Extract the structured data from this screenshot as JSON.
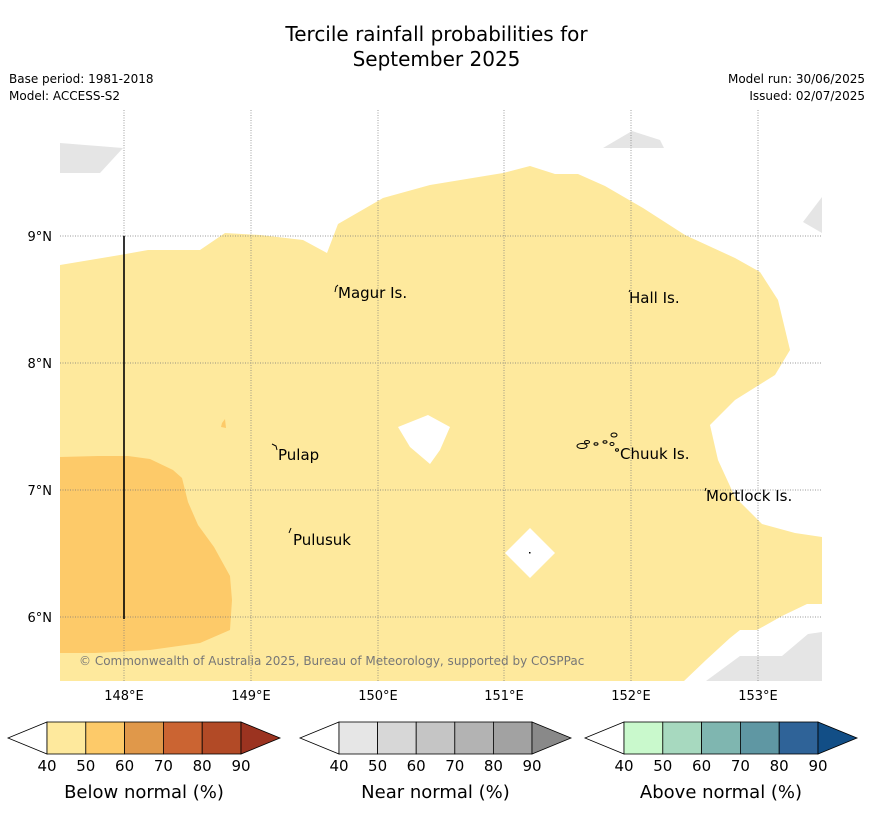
{
  "title_line1": "Tercile rainfall probabilities for",
  "title_line2": "September 2025",
  "meta": {
    "base_period": "Base period: 1981-2018",
    "model": "Model: ACCESS-S2",
    "model_run": "Model run: 30/06/2025",
    "issued": "Issued: 02/07/2025"
  },
  "map": {
    "lon_labels": [
      "148°E",
      "149°E",
      "150°E",
      "151°E",
      "152°E",
      "153°E"
    ],
    "lat_labels": [
      "9°N",
      "8°N",
      "7°N",
      "6°N"
    ],
    "places": [
      "Magur Is.",
      "Hall Is.",
      "Pulap",
      "Chuuk Is.",
      "Mortlock Is.",
      "Pulusuk"
    ],
    "credit": "© Commonwealth of Australia 2025, Bureau of Meteorology, supported by COSPPac",
    "colors": {
      "below_40_50": "#fee99d",
      "below_50_60": "#fdca69",
      "land_grey": "#e5e5e5",
      "grid": "#777777"
    }
  },
  "colorbars": [
    {
      "title": "Below normal (%)",
      "ticks": [
        "40",
        "50",
        "60",
        "70",
        "80",
        "90"
      ],
      "colors": [
        "#fee99d",
        "#fdca69",
        "#e0984a",
        "#cb6432",
        "#b24a26",
        "#9b3320"
      ]
    },
    {
      "title": "Near normal (%)",
      "ticks": [
        "40",
        "50",
        "60",
        "70",
        "80",
        "90"
      ],
      "colors": [
        "#e6e6e6",
        "#d7d7d7",
        "#c5c5c5",
        "#b3b3b3",
        "#a2a2a2",
        "#898989"
      ]
    },
    {
      "title": "Above normal (%)",
      "ticks": [
        "40",
        "50",
        "60",
        "70",
        "80",
        "90"
      ],
      "colors": [
        "#c9f9cc",
        "#a7d9bf",
        "#7fb6b0",
        "#5f97a3",
        "#2f6398",
        "#124e86"
      ]
    }
  ]
}
